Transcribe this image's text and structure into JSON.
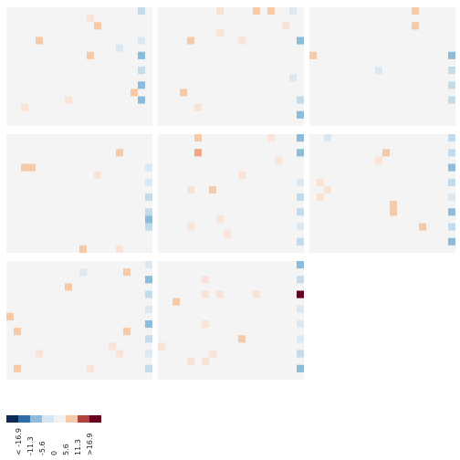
{
  "chart_data": {
    "type": "heatmap",
    "title": "",
    "xlabel": "",
    "ylabel": "",
    "grid_rows": 3,
    "grid_cols": 3,
    "panel_cells": [
      20,
      16
    ],
    "legend": {
      "placement": "bottom-left",
      "labels": [
        "< -16.9",
        "-11.3",
        "-5.6",
        "0",
        "5.6",
        "11.3",
        ">16.9"
      ],
      "colors": [
        "#0d2a55",
        "#2d6ea8",
        "#8cbcd9",
        "#d4e6f1",
        "#f2f2f2",
        "#f5c9aa",
        "#b2403c",
        "#67001f"
      ]
    },
    "background_color": "#f4f4f4",
    "panels": [
      {
        "cells": [
          [
            18,
            0,
            -4
          ],
          [
            11,
            1,
            2
          ],
          [
            12,
            2,
            3
          ],
          [
            18,
            4,
            -2
          ],
          [
            4,
            4,
            3
          ],
          [
            15,
            5,
            -1
          ],
          [
            11,
            6,
            4
          ],
          [
            18,
            6,
            -6
          ],
          [
            18,
            8,
            -4
          ],
          [
            18,
            10,
            -7
          ],
          [
            17,
            11,
            3
          ],
          [
            18,
            12,
            -6
          ],
          [
            8,
            12,
            1
          ],
          [
            2,
            13,
            1
          ]
        ]
      },
      {
        "cells": [
          [
            8,
            0,
            1
          ],
          [
            13,
            0,
            4
          ],
          [
            15,
            0,
            3
          ],
          [
            18,
            0,
            -1
          ],
          [
            17,
            2,
            1
          ],
          [
            19,
            4,
            -5
          ],
          [
            4,
            4,
            3
          ],
          [
            11,
            4,
            2
          ],
          [
            18,
            9,
            -2
          ],
          [
            3,
            11,
            4
          ],
          [
            19,
            12,
            -3
          ],
          [
            5,
            13,
            1
          ],
          [
            19,
            14,
            -7
          ],
          [
            8,
            3,
            1
          ]
        ]
      },
      {
        "cells": [
          [
            14,
            0,
            4
          ],
          [
            14,
            2,
            4
          ],
          [
            0,
            6,
            5
          ],
          [
            19,
            6,
            -7
          ],
          [
            9,
            8,
            -1
          ],
          [
            19,
            8,
            -4
          ],
          [
            19,
            10,
            -3
          ],
          [
            19,
            12,
            -3
          ]
        ]
      },
      {
        "cells": [
          [
            2,
            4,
            4
          ],
          [
            3,
            4,
            3
          ],
          [
            15,
            2,
            5
          ],
          [
            19,
            4,
            -2
          ],
          [
            19,
            6,
            -2
          ],
          [
            19,
            8,
            -4
          ],
          [
            19,
            10,
            -4
          ],
          [
            19,
            11,
            -5
          ],
          [
            19,
            12,
            -3
          ],
          [
            10,
            15,
            3
          ],
          [
            15,
            15,
            1
          ],
          [
            12,
            5,
            1
          ]
        ]
      },
      {
        "cells": [
          [
            19,
            0,
            -6
          ],
          [
            5,
            0,
            5
          ],
          [
            5,
            2,
            8
          ],
          [
            15,
            0,
            2
          ],
          [
            19,
            2,
            -5
          ],
          [
            11,
            5,
            1
          ],
          [
            4,
            7,
            2
          ],
          [
            7,
            7,
            3
          ],
          [
            19,
            6,
            -2
          ],
          [
            19,
            8,
            -4
          ],
          [
            19,
            10,
            -3
          ],
          [
            19,
            12,
            -2
          ],
          [
            19,
            14,
            -3
          ],
          [
            8,
            11,
            1
          ],
          [
            4,
            12,
            1
          ],
          [
            9,
            13,
            1
          ],
          [
            16,
            3,
            1
          ]
        ]
      },
      {
        "cells": [
          [
            2,
            0,
            -2
          ],
          [
            10,
            2,
            4
          ],
          [
            19,
            0,
            -3
          ],
          [
            19,
            2,
            -3
          ],
          [
            19,
            4,
            -7
          ],
          [
            19,
            6,
            -3
          ],
          [
            19,
            8,
            -2
          ],
          [
            19,
            10,
            -5
          ],
          [
            19,
            12,
            -3
          ],
          [
            19,
            14,
            -6
          ],
          [
            2,
            7,
            2
          ],
          [
            1,
            8,
            2
          ],
          [
            11,
            9,
            5
          ],
          [
            11,
            10,
            4
          ],
          [
            15,
            12,
            3
          ],
          [
            1,
            6,
            1
          ],
          [
            9,
            3,
            1
          ]
        ]
      },
      {
        "cells": [
          [
            19,
            0,
            -2
          ],
          [
            19,
            2,
            -5
          ],
          [
            19,
            4,
            -3
          ],
          [
            19,
            6,
            -2
          ],
          [
            19,
            8,
            -6
          ],
          [
            19,
            10,
            -3
          ],
          [
            19,
            12,
            -2
          ],
          [
            19,
            14,
            -3
          ],
          [
            16,
            1,
            3
          ],
          [
            10,
            1,
            -1
          ],
          [
            8,
            3,
            4
          ],
          [
            0,
            7,
            3
          ],
          [
            1,
            9,
            4
          ],
          [
            16,
            9,
            3
          ],
          [
            15,
            12,
            2
          ],
          [
            14,
            11,
            1
          ],
          [
            1,
            14,
            4
          ],
          [
            11,
            14,
            1
          ],
          [
            4,
            12,
            1
          ]
        ]
      },
      {
        "cells": [
          [
            19,
            0,
            -6
          ],
          [
            19,
            2,
            -3
          ],
          [
            19,
            4,
            20
          ],
          [
            19,
            6,
            -2
          ],
          [
            19,
            8,
            -2
          ],
          [
            19,
            10,
            -2
          ],
          [
            19,
            12,
            -4
          ],
          [
            19,
            14,
            -5
          ],
          [
            2,
            5,
            4
          ],
          [
            6,
            4,
            1
          ],
          [
            6,
            8,
            2
          ],
          [
            11,
            10,
            4
          ],
          [
            7,
            12,
            1
          ],
          [
            4,
            13,
            2
          ],
          [
            6,
            13,
            2
          ],
          [
            13,
            4,
            1
          ],
          [
            8,
            4,
            1
          ],
          [
            6,
            2,
            1
          ],
          [
            0,
            11,
            1
          ]
        ]
      }
    ]
  }
}
